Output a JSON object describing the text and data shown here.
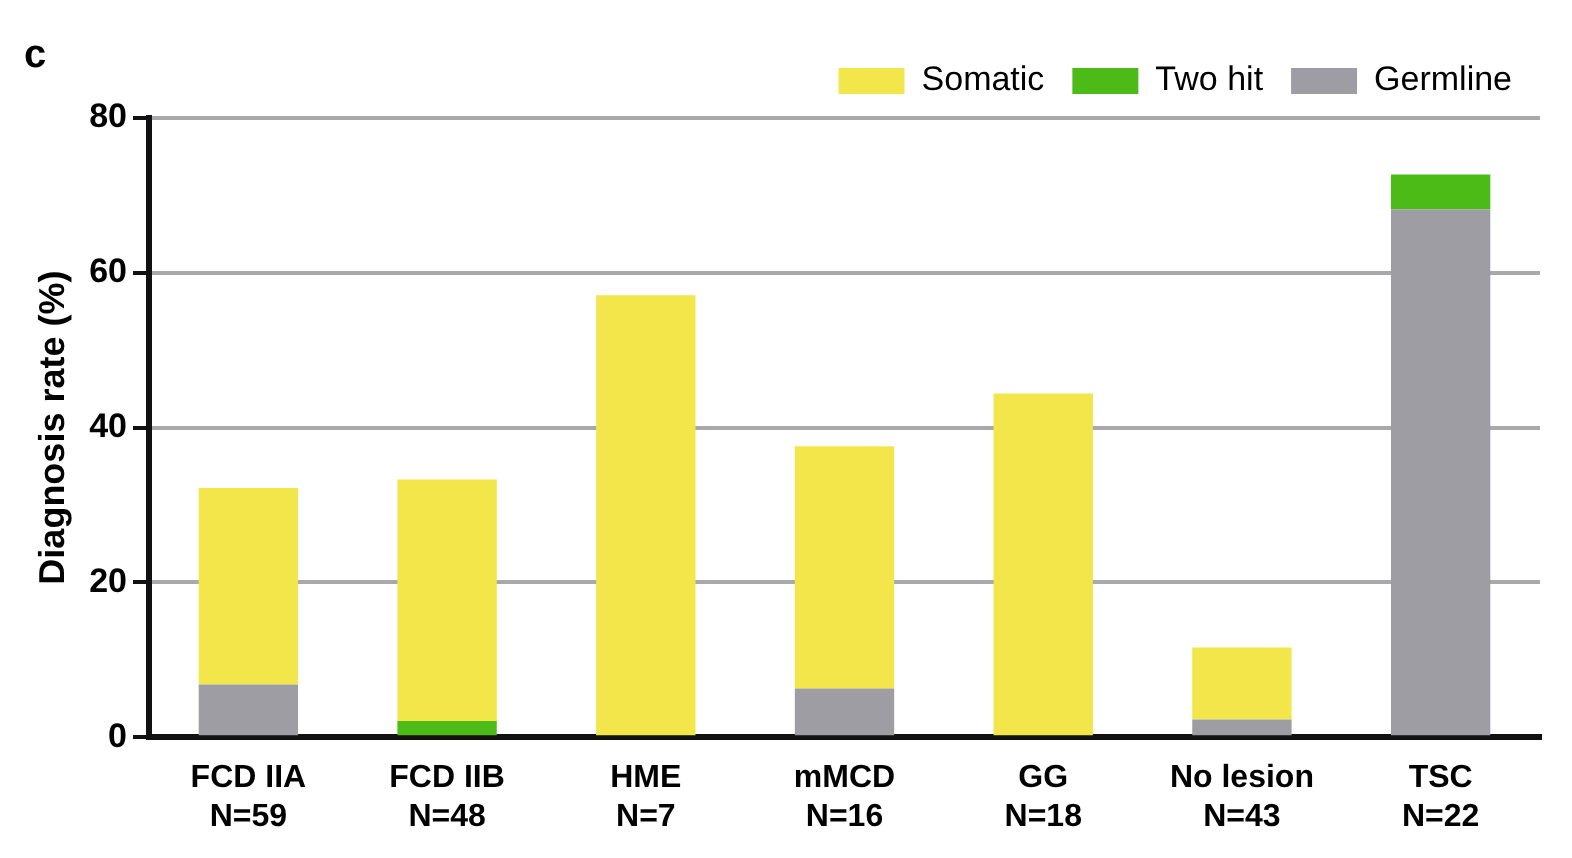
{
  "chart_data": {
    "type": "bar",
    "title": "c",
    "ylabel": "Diagnosis rate (%)",
    "categories": [
      "FCD IIA\nN=59",
      "FCD IIB\nN=48",
      "HME\nN=7",
      "mMCD\nN=16",
      "GG\nN=18",
      "No lesion\nN=43",
      "TSC\nN=22"
    ],
    "series": [
      {
        "name": "Germline",
        "color": "#9e9da3",
        "values": [
          6.8,
          0,
          0,
          6.3,
          0,
          2.3,
          68.2
        ]
      },
      {
        "name": "Two hit",
        "color": "#4cbb17",
        "values": [
          0,
          2.1,
          0,
          0,
          0,
          0,
          4.5
        ]
      },
      {
        "name": "Somatic",
        "color": "#f2e64a",
        "values": [
          25.4,
          31.2,
          57.1,
          31.3,
          44.4,
          9.3,
          0
        ]
      }
    ],
    "stacked": true,
    "ylim": [
      0,
      80
    ],
    "yticks": [
      0,
      20,
      40,
      60,
      80
    ],
    "grid": "y",
    "legend": "top right"
  }
}
